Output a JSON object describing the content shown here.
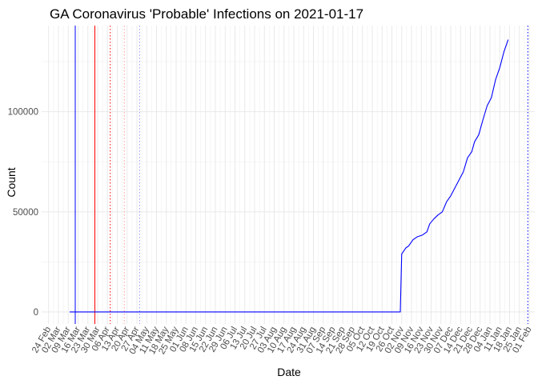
{
  "chart_data": {
    "type": "line",
    "title": "GA Coronavirus 'Probable' Infections on 2021-01-17",
    "xlabel": "Date",
    "ylabel": "Count",
    "x_axis_type": "date",
    "xlim": [
      "2020-02-19",
      "2021-02-05"
    ],
    "ylim": [
      -6000,
      143000
    ],
    "grid": true,
    "legend": "none",
    "y_ticks": [
      {
        "value": 0,
        "label": "0"
      },
      {
        "value": 50000,
        "label": "50000"
      },
      {
        "value": 100000,
        "label": "100000"
      }
    ],
    "x_ticks": [
      {
        "value": "2020-02-24",
        "label": "24 Feb"
      },
      {
        "value": "2020-03-02",
        "label": "02 Mar"
      },
      {
        "value": "2020-03-09",
        "label": "09 Mar"
      },
      {
        "value": "2020-03-16",
        "label": "16 Mar"
      },
      {
        "value": "2020-03-23",
        "label": "23 Mar"
      },
      {
        "value": "2020-03-30",
        "label": "30 Mar"
      },
      {
        "value": "2020-04-06",
        "label": "06 Apr"
      },
      {
        "value": "2020-04-13",
        "label": "13 Apr"
      },
      {
        "value": "2020-04-20",
        "label": "20 Apr"
      },
      {
        "value": "2020-04-27",
        "label": "27 Apr"
      },
      {
        "value": "2020-05-04",
        "label": "04 May"
      },
      {
        "value": "2020-05-11",
        "label": "11 May"
      },
      {
        "value": "2020-05-18",
        "label": "18 May"
      },
      {
        "value": "2020-05-25",
        "label": "25 May"
      },
      {
        "value": "2020-06-01",
        "label": "01 Jun"
      },
      {
        "value": "2020-06-08",
        "label": "08 Jun"
      },
      {
        "value": "2020-06-15",
        "label": "15 Jun"
      },
      {
        "value": "2020-06-22",
        "label": "22 Jun"
      },
      {
        "value": "2020-06-29",
        "label": "29 Jun"
      },
      {
        "value": "2020-07-06",
        "label": "06 Jul"
      },
      {
        "value": "2020-07-13",
        "label": "13 Jul"
      },
      {
        "value": "2020-07-20",
        "label": "20 Jul"
      },
      {
        "value": "2020-07-27",
        "label": "27 Jul"
      },
      {
        "value": "2020-08-03",
        "label": "03 Aug"
      },
      {
        "value": "2020-08-10",
        "label": "10 Aug"
      },
      {
        "value": "2020-08-17",
        "label": "17 Aug"
      },
      {
        "value": "2020-08-24",
        "label": "24 Aug"
      },
      {
        "value": "2020-08-31",
        "label": "31 Aug"
      },
      {
        "value": "2020-09-07",
        "label": "07 Sep"
      },
      {
        "value": "2020-09-14",
        "label": "14 Sep"
      },
      {
        "value": "2020-09-21",
        "label": "21 Sep"
      },
      {
        "value": "2020-09-28",
        "label": "28 Sep"
      },
      {
        "value": "2020-10-05",
        "label": "05 Oct"
      },
      {
        "value": "2020-10-12",
        "label": "12 Oct"
      },
      {
        "value": "2020-10-19",
        "label": "19 Oct"
      },
      {
        "value": "2020-10-26",
        "label": "26 Oct"
      },
      {
        "value": "2020-11-02",
        "label": "02 Nov"
      },
      {
        "value": "2020-11-09",
        "label": "09 Nov"
      },
      {
        "value": "2020-11-16",
        "label": "16 Nov"
      },
      {
        "value": "2020-11-23",
        "label": "23 Nov"
      },
      {
        "value": "2020-11-30",
        "label": "30 Nov"
      },
      {
        "value": "2020-12-07",
        "label": "07 Dec"
      },
      {
        "value": "2020-12-14",
        "label": "14 Dec"
      },
      {
        "value": "2020-12-21",
        "label": "21 Dec"
      },
      {
        "value": "2020-12-28",
        "label": "28 Dec"
      },
      {
        "value": "2021-01-04",
        "label": "04 Jan"
      },
      {
        "value": "2021-01-11",
        "label": "11 Jan"
      },
      {
        "value": "2021-01-18",
        "label": "18 Jan"
      },
      {
        "value": "2021-01-25",
        "label": "25 Jan"
      },
      {
        "value": "2021-02-01",
        "label": "01 Feb"
      }
    ],
    "vertical_lines": [
      {
        "x": "2020-03-14",
        "color": "#0000ff",
        "style": "solid"
      },
      {
        "x": "2020-03-28",
        "color": "#ff0000",
        "style": "solid"
      },
      {
        "x": "2020-04-08",
        "color": "#ff0000",
        "style": "dotted"
      },
      {
        "x": "2020-04-18",
        "color": "#ff9999",
        "style": "dotted"
      },
      {
        "x": "2020-04-29",
        "color": "#9999ff",
        "style": "dotted"
      },
      {
        "x": "2021-01-31",
        "color": "#0000ff",
        "style": "dotted"
      }
    ],
    "series": [
      {
        "color": "#0000ff",
        "points": [
          {
            "x": "2020-03-10",
            "y": 0
          },
          {
            "x": "2020-11-01",
            "y": 0
          },
          {
            "x": "2020-11-02",
            "y": 29000
          },
          {
            "x": "2020-11-05",
            "y": 32000
          },
          {
            "x": "2020-11-07",
            "y": 33000
          },
          {
            "x": "2020-11-10",
            "y": 36000
          },
          {
            "x": "2020-11-13",
            "y": 37500
          },
          {
            "x": "2020-11-17",
            "y": 38500
          },
          {
            "x": "2020-11-20",
            "y": 40000
          },
          {
            "x": "2020-11-22",
            "y": 44000
          },
          {
            "x": "2020-11-25",
            "y": 46500
          },
          {
            "x": "2020-11-28",
            "y": 48500
          },
          {
            "x": "2020-12-01",
            "y": 50000
          },
          {
            "x": "2020-12-04",
            "y": 55000
          },
          {
            "x": "2020-12-07",
            "y": 58000
          },
          {
            "x": "2020-12-10",
            "y": 62000
          },
          {
            "x": "2020-12-13",
            "y": 66000
          },
          {
            "x": "2020-12-16",
            "y": 70000
          },
          {
            "x": "2020-12-19",
            "y": 77000
          },
          {
            "x": "2020-12-22",
            "y": 80000
          },
          {
            "x": "2020-12-24",
            "y": 85000
          },
          {
            "x": "2020-12-27",
            "y": 88500
          },
          {
            "x": "2020-12-30",
            "y": 96000
          },
          {
            "x": "2021-01-02",
            "y": 103000
          },
          {
            "x": "2021-01-05",
            "y": 107000
          },
          {
            "x": "2021-01-08",
            "y": 116000
          },
          {
            "x": "2021-01-11",
            "y": 122000
          },
          {
            "x": "2021-01-14",
            "y": 130000
          },
          {
            "x": "2021-01-17",
            "y": 136000
          }
        ]
      }
    ]
  }
}
